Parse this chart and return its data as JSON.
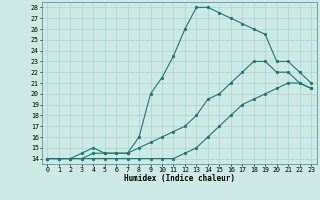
{
  "xlabel": "Humidex (Indice chaleur)",
  "bg_color": "#cce9e5",
  "grid_color": "#aad4cf",
  "line_color": "#1a7a6e",
  "xlim": [
    -0.5,
    23.5
  ],
  "ylim": [
    13.5,
    28.5
  ],
  "xticks": [
    0,
    1,
    2,
    3,
    4,
    5,
    6,
    7,
    8,
    9,
    10,
    11,
    12,
    13,
    14,
    15,
    16,
    17,
    18,
    19,
    20,
    21,
    22,
    23
  ],
  "yticks": [
    14,
    15,
    16,
    17,
    18,
    19,
    20,
    21,
    22,
    23,
    24,
    25,
    26,
    27,
    28
  ],
  "lines": [
    {
      "x": [
        0,
        1,
        2,
        3,
        4,
        5,
        6,
        7,
        8,
        9,
        10,
        11,
        12,
        13,
        14,
        15,
        16,
        17,
        18,
        19,
        20,
        21,
        22,
        23
      ],
      "y": [
        14,
        14,
        14,
        14,
        14,
        14,
        14,
        14,
        14,
        14,
        14,
        14,
        14.5,
        15,
        16,
        17,
        18,
        19,
        19.5,
        20,
        20.5,
        21,
        21,
        20.5
      ]
    },
    {
      "x": [
        0,
        1,
        2,
        3,
        4,
        5,
        6,
        7,
        8,
        9,
        10,
        11,
        12,
        13,
        14,
        15,
        16,
        17,
        18,
        19,
        20,
        21,
        22,
        23
      ],
      "y": [
        14,
        14,
        14,
        14,
        14.5,
        14.5,
        14.5,
        14.5,
        15,
        15.5,
        16,
        16.5,
        17,
        18,
        19.5,
        20,
        21,
        22,
        23,
        23,
        22,
        22,
        21,
        20.5
      ]
    },
    {
      "x": [
        0,
        1,
        2,
        3,
        4,
        5,
        6,
        7,
        8,
        9,
        10,
        11,
        12,
        13,
        14,
        15,
        16,
        17,
        18,
        19,
        20,
        21,
        22,
        23
      ],
      "y": [
        14,
        14,
        14,
        14.5,
        15,
        14.5,
        14.5,
        14.5,
        16,
        20,
        21.5,
        23.5,
        26,
        28,
        28,
        27.5,
        27,
        26.5,
        26,
        25.5,
        23,
        23,
        22,
        21
      ]
    }
  ]
}
